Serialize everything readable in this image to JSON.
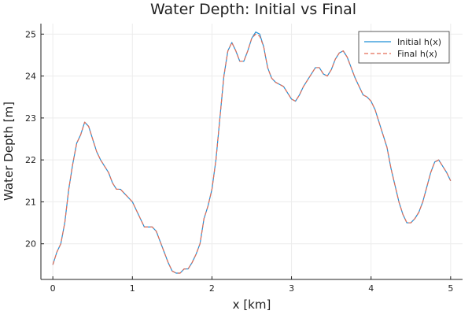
{
  "chart_data": {
    "type": "line",
    "title": "Water Depth: Initial vs Final",
    "xlabel": "x [km]",
    "ylabel": "Water Depth [m]",
    "xlim": [
      -0.15,
      5.15
    ],
    "ylim": [
      19.15,
      25.25
    ],
    "x_ticks": [
      0,
      1,
      2,
      3,
      4,
      5
    ],
    "y_ticks": [
      20,
      21,
      22,
      23,
      24,
      25
    ],
    "grid": true,
    "legend_position": "top-right",
    "series": [
      {
        "name": "Initial h(x)",
        "color": "#1f8fd6",
        "style": "solid",
        "x": [
          0.0,
          0.05,
          0.1,
          0.15,
          0.2,
          0.25,
          0.3,
          0.35,
          0.4,
          0.45,
          0.5,
          0.55,
          0.6,
          0.65,
          0.7,
          0.75,
          0.8,
          0.85,
          0.9,
          0.95,
          1.0,
          1.05,
          1.1,
          1.15,
          1.2,
          1.25,
          1.3,
          1.35,
          1.4,
          1.45,
          1.5,
          1.55,
          1.6,
          1.65,
          1.7,
          1.75,
          1.8,
          1.85,
          1.9,
          1.95,
          2.0,
          2.05,
          2.1,
          2.15,
          2.2,
          2.25,
          2.3,
          2.35,
          2.4,
          2.45,
          2.5,
          2.55,
          2.6,
          2.65,
          2.7,
          2.75,
          2.8,
          2.85,
          2.9,
          2.95,
          3.0,
          3.05,
          3.1,
          3.15,
          3.2,
          3.25,
          3.3,
          3.35,
          3.4,
          3.45,
          3.5,
          3.55,
          3.6,
          3.65,
          3.7,
          3.75,
          3.8,
          3.85,
          3.9,
          3.95,
          4.0,
          4.05,
          4.1,
          4.15,
          4.2,
          4.25,
          4.3,
          4.35,
          4.4,
          4.45,
          4.5,
          4.55,
          4.6,
          4.65,
          4.7,
          4.75,
          4.8,
          4.85,
          4.9,
          4.95,
          5.0
        ],
        "y": [
          19.5,
          19.8,
          20.0,
          20.5,
          21.3,
          21.9,
          22.4,
          22.6,
          22.9,
          22.8,
          22.5,
          22.2,
          22.0,
          21.85,
          21.7,
          21.45,
          21.3,
          21.3,
          21.2,
          21.1,
          21.0,
          20.8,
          20.6,
          20.4,
          20.4,
          20.4,
          20.3,
          20.05,
          19.8,
          19.55,
          19.35,
          19.3,
          19.3,
          19.4,
          19.4,
          19.55,
          19.75,
          20.0,
          20.6,
          20.9,
          21.3,
          22.0,
          23.0,
          24.0,
          24.6,
          24.8,
          24.6,
          24.35,
          24.35,
          24.6,
          24.9,
          25.05,
          25.0,
          24.7,
          24.2,
          23.95,
          23.85,
          23.8,
          23.75,
          23.6,
          23.45,
          23.4,
          23.55,
          23.75,
          23.9,
          24.05,
          24.2,
          24.2,
          24.05,
          24.0,
          24.15,
          24.4,
          24.55,
          24.6,
          24.45,
          24.2,
          23.95,
          23.75,
          23.55,
          23.5,
          23.4,
          23.2,
          22.9,
          22.6,
          22.3,
          21.8,
          21.4,
          21.0,
          20.7,
          20.5,
          20.5,
          20.6,
          20.75,
          21.0,
          21.35,
          21.7,
          21.95,
          22.0,
          21.85,
          21.7,
          21.5
        ]
      },
      {
        "name": "Final h(x)",
        "color": "#e46e57",
        "style": "dashed",
        "x": [
          0.0,
          0.05,
          0.1,
          0.15,
          0.2,
          0.25,
          0.3,
          0.35,
          0.4,
          0.45,
          0.5,
          0.55,
          0.6,
          0.65,
          0.7,
          0.75,
          0.8,
          0.85,
          0.9,
          0.95,
          1.0,
          1.05,
          1.1,
          1.15,
          1.2,
          1.25,
          1.3,
          1.35,
          1.4,
          1.45,
          1.5,
          1.55,
          1.6,
          1.65,
          1.7,
          1.75,
          1.8,
          1.85,
          1.9,
          1.95,
          2.0,
          2.05,
          2.1,
          2.15,
          2.2,
          2.25,
          2.3,
          2.35,
          2.4,
          2.45,
          2.5,
          2.55,
          2.6,
          2.65,
          2.7,
          2.75,
          2.8,
          2.85,
          2.9,
          2.95,
          3.0,
          3.05,
          3.1,
          3.15,
          3.2,
          3.25,
          3.3,
          3.35,
          3.4,
          3.45,
          3.5,
          3.55,
          3.6,
          3.65,
          3.7,
          3.75,
          3.8,
          3.85,
          3.9,
          3.95,
          4.0,
          4.05,
          4.1,
          4.15,
          4.2,
          4.25,
          4.3,
          4.35,
          4.4,
          4.45,
          4.5,
          4.55,
          4.6,
          4.65,
          4.7,
          4.75,
          4.8,
          4.85,
          4.9,
          4.95,
          5.0
        ],
        "y": [
          19.5,
          19.8,
          20.0,
          20.5,
          21.3,
          21.9,
          22.4,
          22.6,
          22.9,
          22.8,
          22.5,
          22.2,
          22.0,
          21.85,
          21.7,
          21.45,
          21.3,
          21.3,
          21.2,
          21.1,
          21.0,
          20.8,
          20.6,
          20.4,
          20.4,
          20.4,
          20.3,
          20.05,
          19.8,
          19.55,
          19.35,
          19.3,
          19.3,
          19.4,
          19.4,
          19.55,
          19.75,
          20.0,
          20.6,
          20.9,
          21.3,
          22.0,
          23.0,
          24.0,
          24.6,
          24.8,
          24.6,
          24.35,
          24.35,
          24.6,
          24.9,
          25.0,
          24.95,
          24.7,
          24.2,
          23.95,
          23.85,
          23.8,
          23.75,
          23.6,
          23.45,
          23.4,
          23.55,
          23.75,
          23.9,
          24.05,
          24.2,
          24.2,
          24.05,
          24.0,
          24.15,
          24.4,
          24.55,
          24.6,
          24.45,
          24.2,
          23.95,
          23.75,
          23.55,
          23.5,
          23.4,
          23.2,
          22.9,
          22.6,
          22.3,
          21.8,
          21.4,
          21.0,
          20.7,
          20.5,
          20.5,
          20.6,
          20.75,
          21.0,
          21.35,
          21.7,
          21.95,
          22.0,
          21.85,
          21.7,
          21.5
        ]
      }
    ]
  }
}
